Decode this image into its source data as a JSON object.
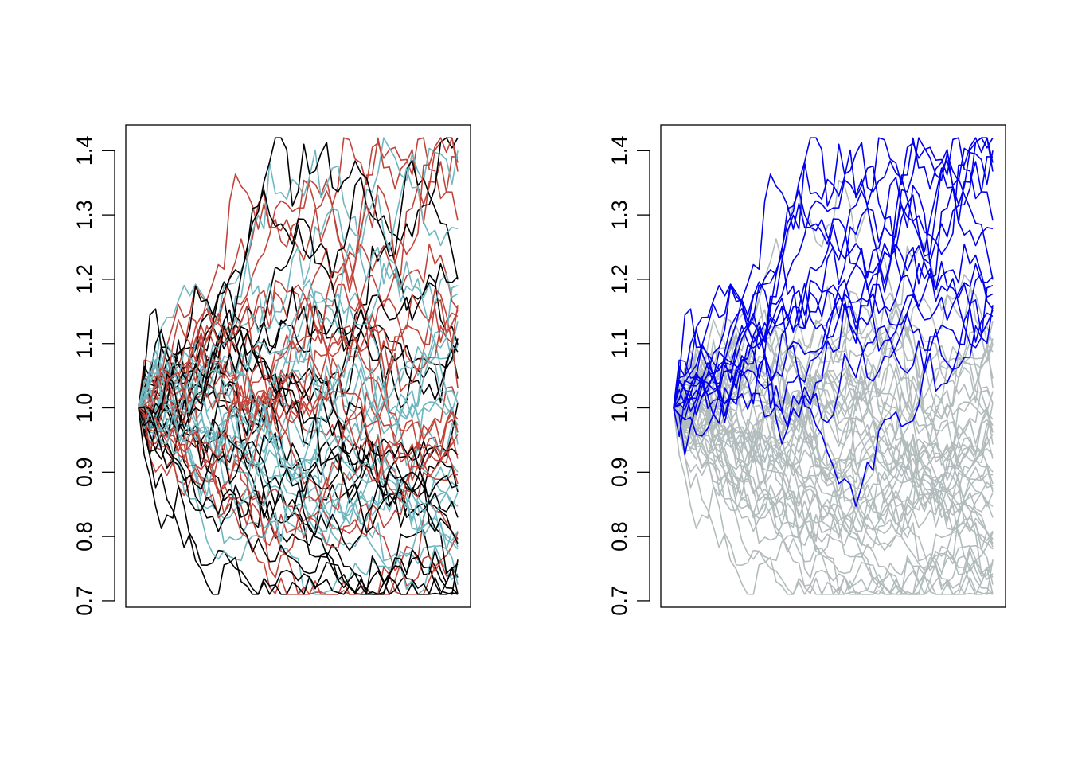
{
  "chart_data": [
    {
      "type": "line",
      "title": "",
      "xlabel": "",
      "ylabel": "",
      "x_axis_shown": false,
      "ylim": [
        0.69,
        1.44
      ],
      "yticks": [
        0.7,
        0.8,
        0.9,
        1.0,
        1.1,
        1.2,
        1.3,
        1.4
      ],
      "ytick_labels": [
        "0.7",
        "0.8",
        "0.9",
        "1.0",
        "1.1",
        "1.2",
        "1.3",
        "1.4"
      ],
      "steps": 56,
      "n_paths": 60,
      "seed": 7,
      "color_by": "group",
      "group_colors": [
        "#c0443a",
        "#6fb7c0",
        "#000000"
      ],
      "legend": "none",
      "grid": false
    },
    {
      "type": "line",
      "title": "",
      "xlabel": "",
      "ylabel": "",
      "x_axis_shown": false,
      "ylim": [
        0.69,
        1.44
      ],
      "yticks": [
        0.7,
        0.8,
        0.9,
        1.0,
        1.1,
        1.2,
        1.3,
        1.4
      ],
      "ytick_labels": [
        "0.7",
        "0.8",
        "0.9",
        "1.0",
        "1.1",
        "1.2",
        "1.3",
        "1.4"
      ],
      "steps": 56,
      "n_paths": 60,
      "seed": 7,
      "color_by": "final_rank",
      "highlight_top_n": 15,
      "highlight_color": "#0000ee",
      "base_color": "#b3bcbc",
      "legend": "none",
      "grid": false
    }
  ]
}
